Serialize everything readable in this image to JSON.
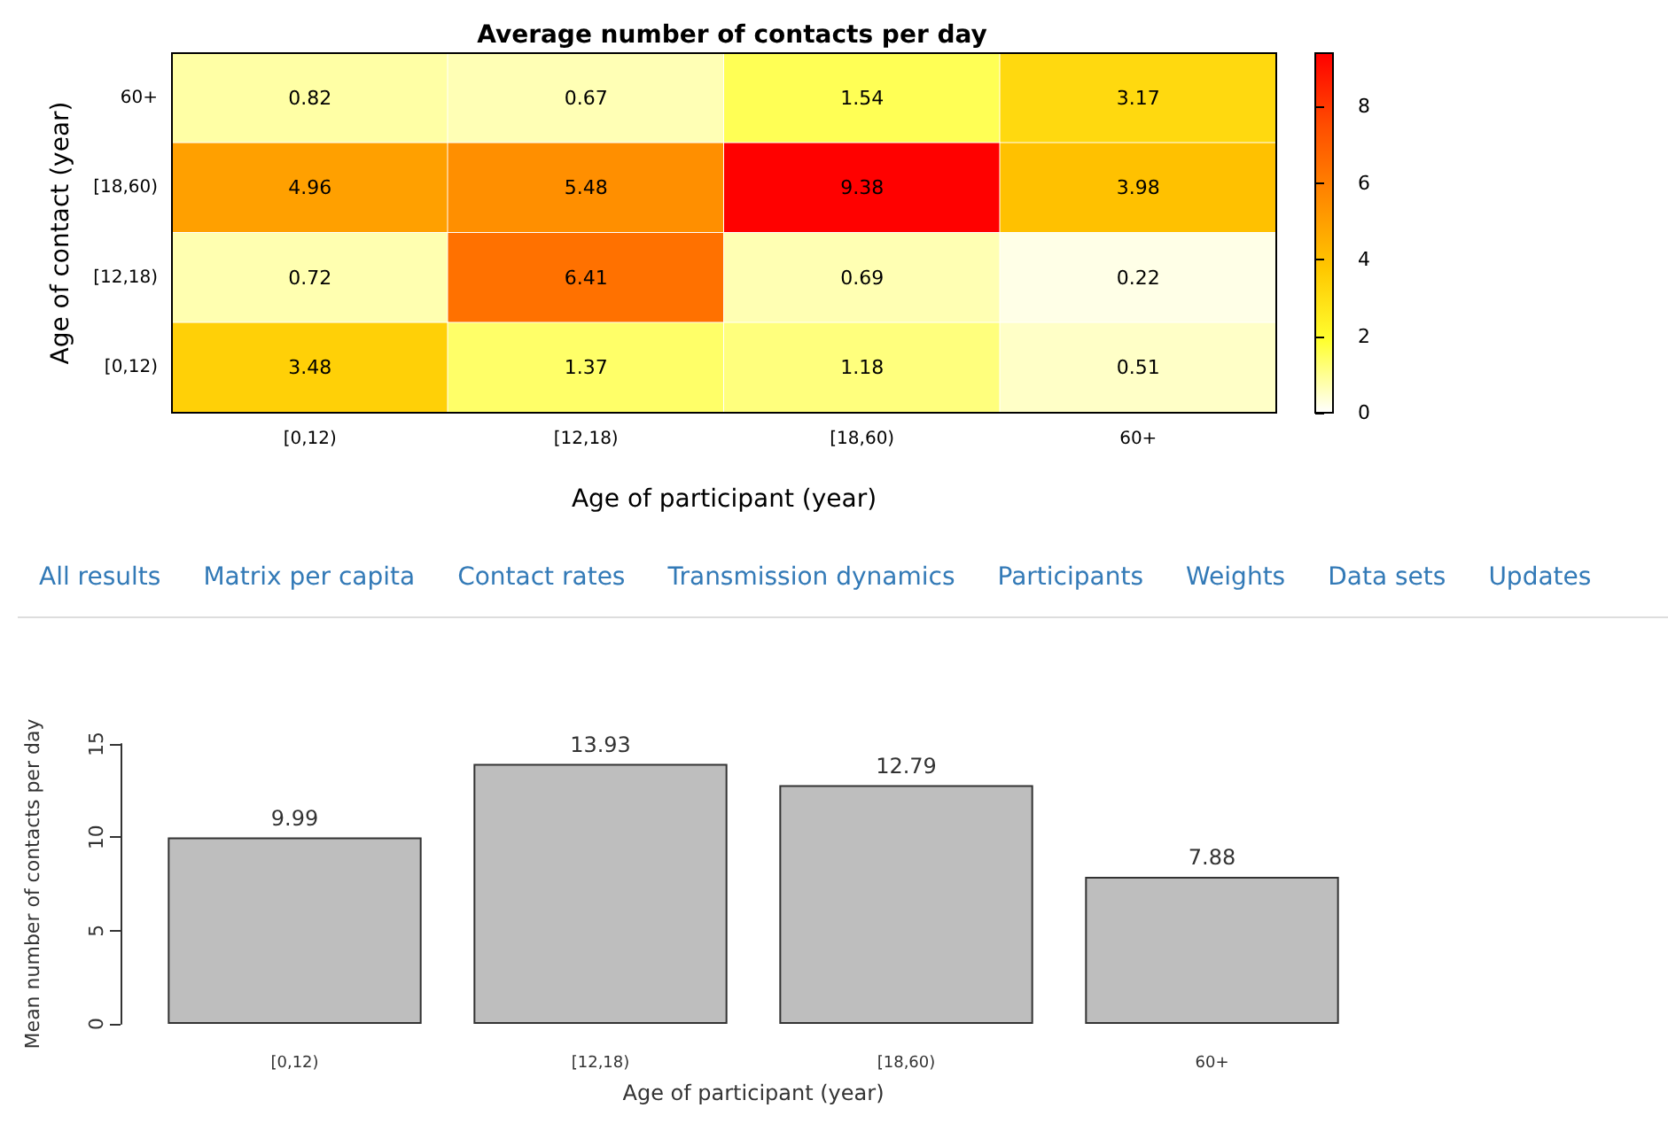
{
  "chart_data": [
    {
      "type": "heatmap",
      "title": "Average number of contacts per day",
      "xlabel": "Age of participant (year)",
      "ylabel": "Age of contact (year)",
      "categories": [
        "[0,12)",
        "[12,18)",
        "[18,60)",
        "60+"
      ],
      "y_categories": [
        "60+",
        "[18,60)",
        "[12,18)",
        "[0,12)"
      ],
      "cells": [
        [
          0.82,
          0.67,
          1.54,
          3.17
        ],
        [
          4.96,
          5.48,
          9.38,
          3.98
        ],
        [
          0.72,
          6.41,
          0.69,
          0.22
        ],
        [
          3.48,
          1.37,
          1.18,
          0.51
        ]
      ],
      "clim": [
        0,
        9.4
      ],
      "cticks": [
        0,
        2,
        4,
        6,
        8
      ],
      "data_labels": true
    },
    {
      "type": "other",
      "annotations": [
        "All results",
        "Matrix per capita",
        "Contact rates",
        "Transmission dynamics",
        "Participants",
        "Weights",
        "Data sets",
        "Updates"
      ]
    },
    {
      "type": "bar",
      "xlabel": "Age of participant (year)",
      "ylabel": "Mean number of contacts per day",
      "categories": [
        "[0,12)",
        "[12,18)",
        "[18,60)",
        "60+"
      ],
      "values": [
        9.99,
        13.93,
        12.79,
        7.88
      ],
      "color": "#bebebe",
      "ylim": [
        0,
        15
      ],
      "yticks": [
        0,
        5,
        10,
        15
      ],
      "grid": false,
      "data_labels": true
    }
  ]
}
